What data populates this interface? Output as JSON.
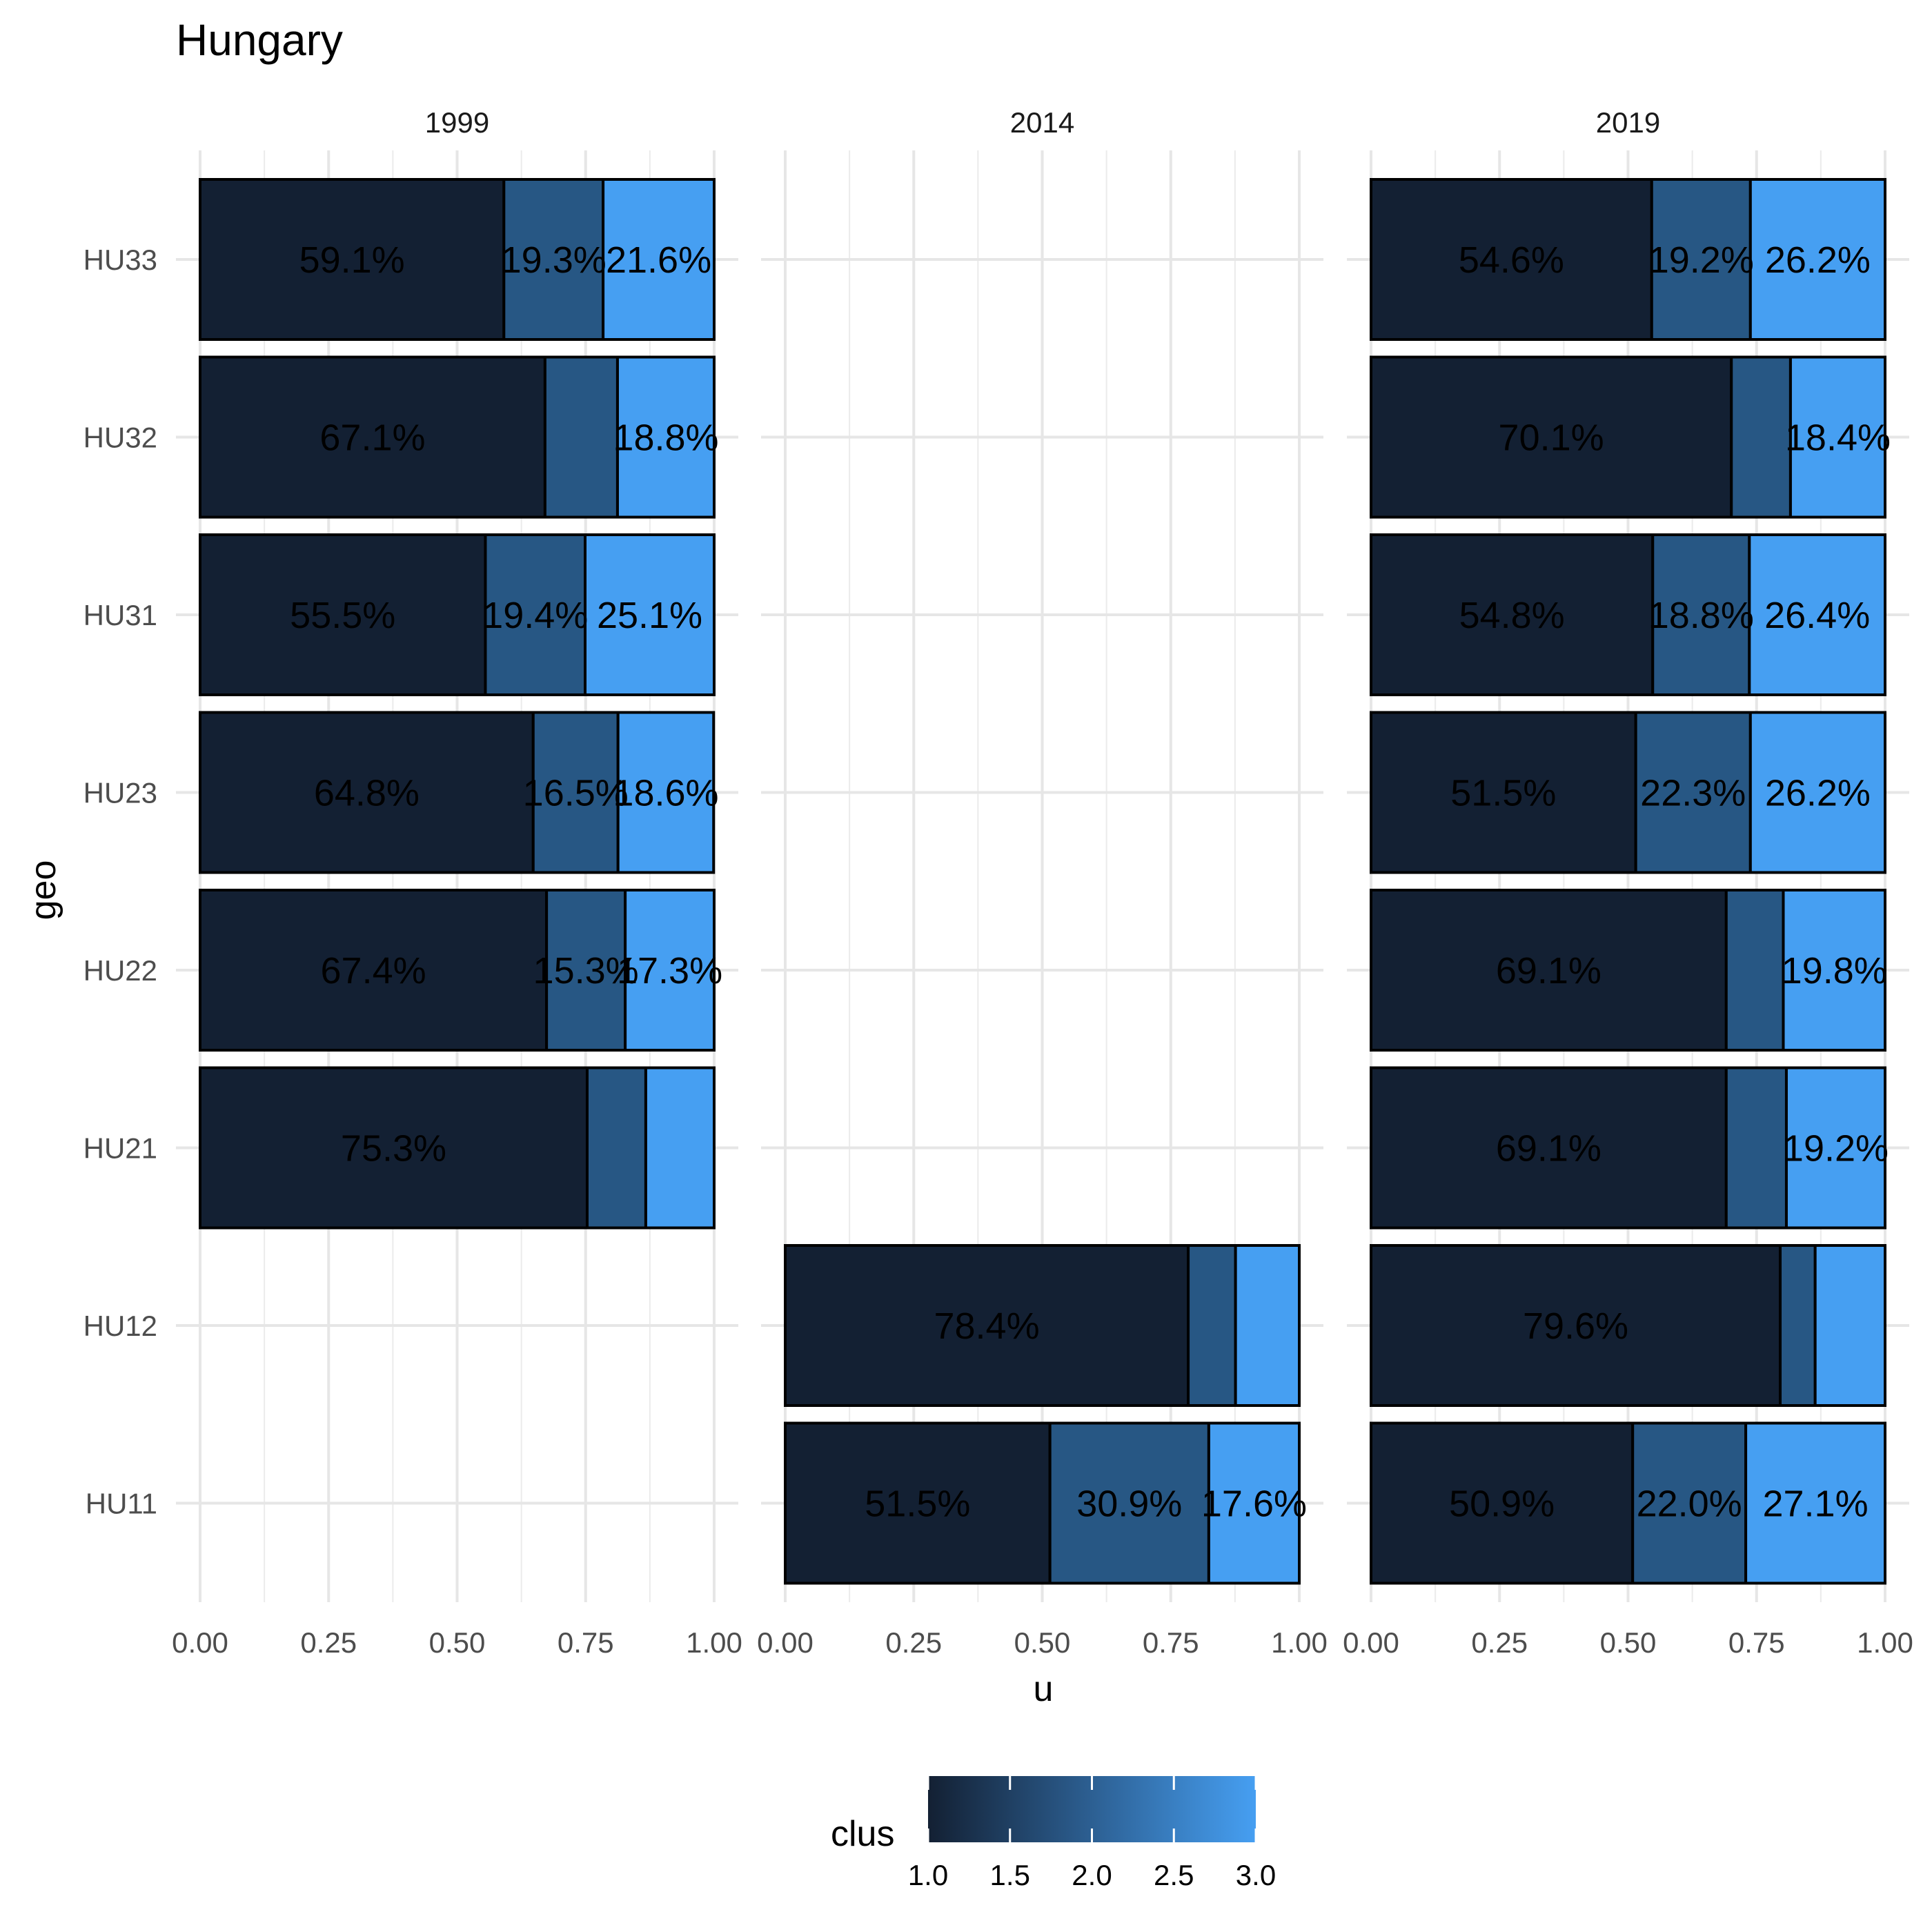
{
  "chart_data": {
    "type": "bar",
    "orientation": "horizontal",
    "stacked": true,
    "title": "Hungary",
    "xlabel": "u",
    "ylabel": "geo",
    "xlim": [
      0,
      1
    ],
    "x_ticks": [
      "0.00",
      "0.25",
      "0.50",
      "0.75",
      "1.00"
    ],
    "categories": [
      "HU33",
      "HU32",
      "HU31",
      "HU23",
      "HU22",
      "HU21",
      "HU12",
      "HU11"
    ],
    "segment_colors": [
      "#132033",
      "#275784",
      "#469ff2"
    ],
    "panels": [
      {
        "label": "1999",
        "bars": [
          {
            "geo": "HU33",
            "values": [
              0.591,
              0.193,
              0.216
            ],
            "labels": [
              "59.1%",
              "19.3%",
              "21.6%"
            ]
          },
          {
            "geo": "HU32",
            "values": [
              0.671,
              0.141,
              0.188
            ],
            "labels": [
              "67.1%",
              "",
              "18.8%"
            ]
          },
          {
            "geo": "HU31",
            "values": [
              0.555,
              0.194,
              0.251
            ],
            "labels": [
              "55.5%",
              "19.4%",
              "25.1%"
            ]
          },
          {
            "geo": "HU23",
            "values": [
              0.648,
              0.165,
              0.186
            ],
            "labels": [
              "64.8%",
              "16.5%",
              "18.6%"
            ]
          },
          {
            "geo": "HU22",
            "values": [
              0.674,
              0.153,
              0.173
            ],
            "labels": [
              "67.4%",
              "15.3%",
              "17.3%"
            ]
          },
          {
            "geo": "HU21",
            "values": [
              0.753,
              0.114,
              0.133
            ],
            "labels": [
              "75.3%",
              "",
              ""
            ]
          }
        ]
      },
      {
        "label": "2014",
        "bars": [
          {
            "geo": "HU12",
            "values": [
              0.784,
              0.092,
              0.124
            ],
            "labels": [
              "78.4%",
              "",
              ""
            ]
          },
          {
            "geo": "HU11",
            "values": [
              0.515,
              0.309,
              0.176
            ],
            "labels": [
              "51.5%",
              "30.9%",
              "17.6%"
            ]
          }
        ]
      },
      {
        "label": "2019",
        "bars": [
          {
            "geo": "HU33",
            "values": [
              0.546,
              0.192,
              0.262
            ],
            "labels": [
              "54.6%",
              "19.2%",
              "26.2%"
            ]
          },
          {
            "geo": "HU32",
            "values": [
              0.701,
              0.115,
              0.184
            ],
            "labels": [
              "70.1%",
              "",
              "18.4%"
            ]
          },
          {
            "geo": "HU31",
            "values": [
              0.548,
              0.188,
              0.264
            ],
            "labels": [
              "54.8%",
              "18.8%",
              "26.4%"
            ]
          },
          {
            "geo": "HU23",
            "values": [
              0.515,
              0.223,
              0.262
            ],
            "labels": [
              "51.5%",
              "22.3%",
              "26.2%"
            ]
          },
          {
            "geo": "HU22",
            "values": [
              0.691,
              0.111,
              0.198
            ],
            "labels": [
              "69.1%",
              "",
              "19.8%"
            ]
          },
          {
            "geo": "HU21",
            "values": [
              0.691,
              0.117,
              0.192
            ],
            "labels": [
              "69.1%",
              "",
              "19.2%"
            ]
          },
          {
            "geo": "HU12",
            "values": [
              0.796,
              0.068,
              0.136
            ],
            "labels": [
              "79.6%",
              "",
              ""
            ]
          },
          {
            "geo": "HU11",
            "values": [
              0.509,
              0.22,
              0.271
            ],
            "labels": [
              "50.9%",
              "22.0%",
              "27.1%"
            ]
          }
        ]
      }
    ],
    "legend": {
      "title": "clus",
      "position": "bottom",
      "type": "colorbar",
      "range": [
        1,
        3
      ],
      "ticks": [
        "1.0",
        "1.5",
        "2.0",
        "2.5",
        "3.0"
      ],
      "color_low": "#132033",
      "color_high": "#469ff2"
    },
    "grid": true
  }
}
